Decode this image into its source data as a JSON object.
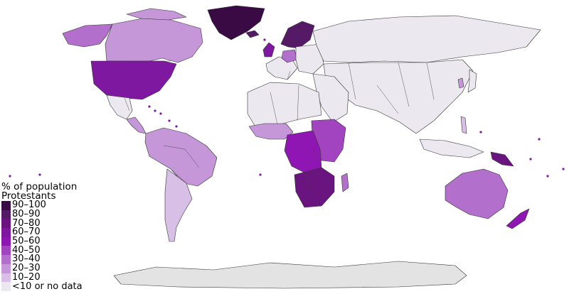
{
  "legend": {
    "title_line1": "% of population",
    "title_line2": "Protestants",
    "items": [
      {
        "label": "90–100",
        "color": "#3a0a45"
      },
      {
        "label": "80–90",
        "color": "#551a66"
      },
      {
        "label": "70–80",
        "color": "#6a1480"
      },
      {
        "label": "60–70",
        "color": "#7e18a0"
      },
      {
        "label": "50–60",
        "color": "#9016b3"
      },
      {
        "label": "40–50",
        "color": "#a244bf"
      },
      {
        "label": "30–40",
        "color": "#b36fcc"
      },
      {
        "label": "20–30",
        "color": "#c597d9"
      },
      {
        "label": "10–20",
        "color": "#d8bfe6"
      },
      {
        "label": "<10 or no data",
        "color": "#ebe8f0"
      }
    ]
  },
  "colors": {
    "antarctica": "#e3e3e3",
    "ocean": "#ffffff",
    "border": "#333333"
  }
}
